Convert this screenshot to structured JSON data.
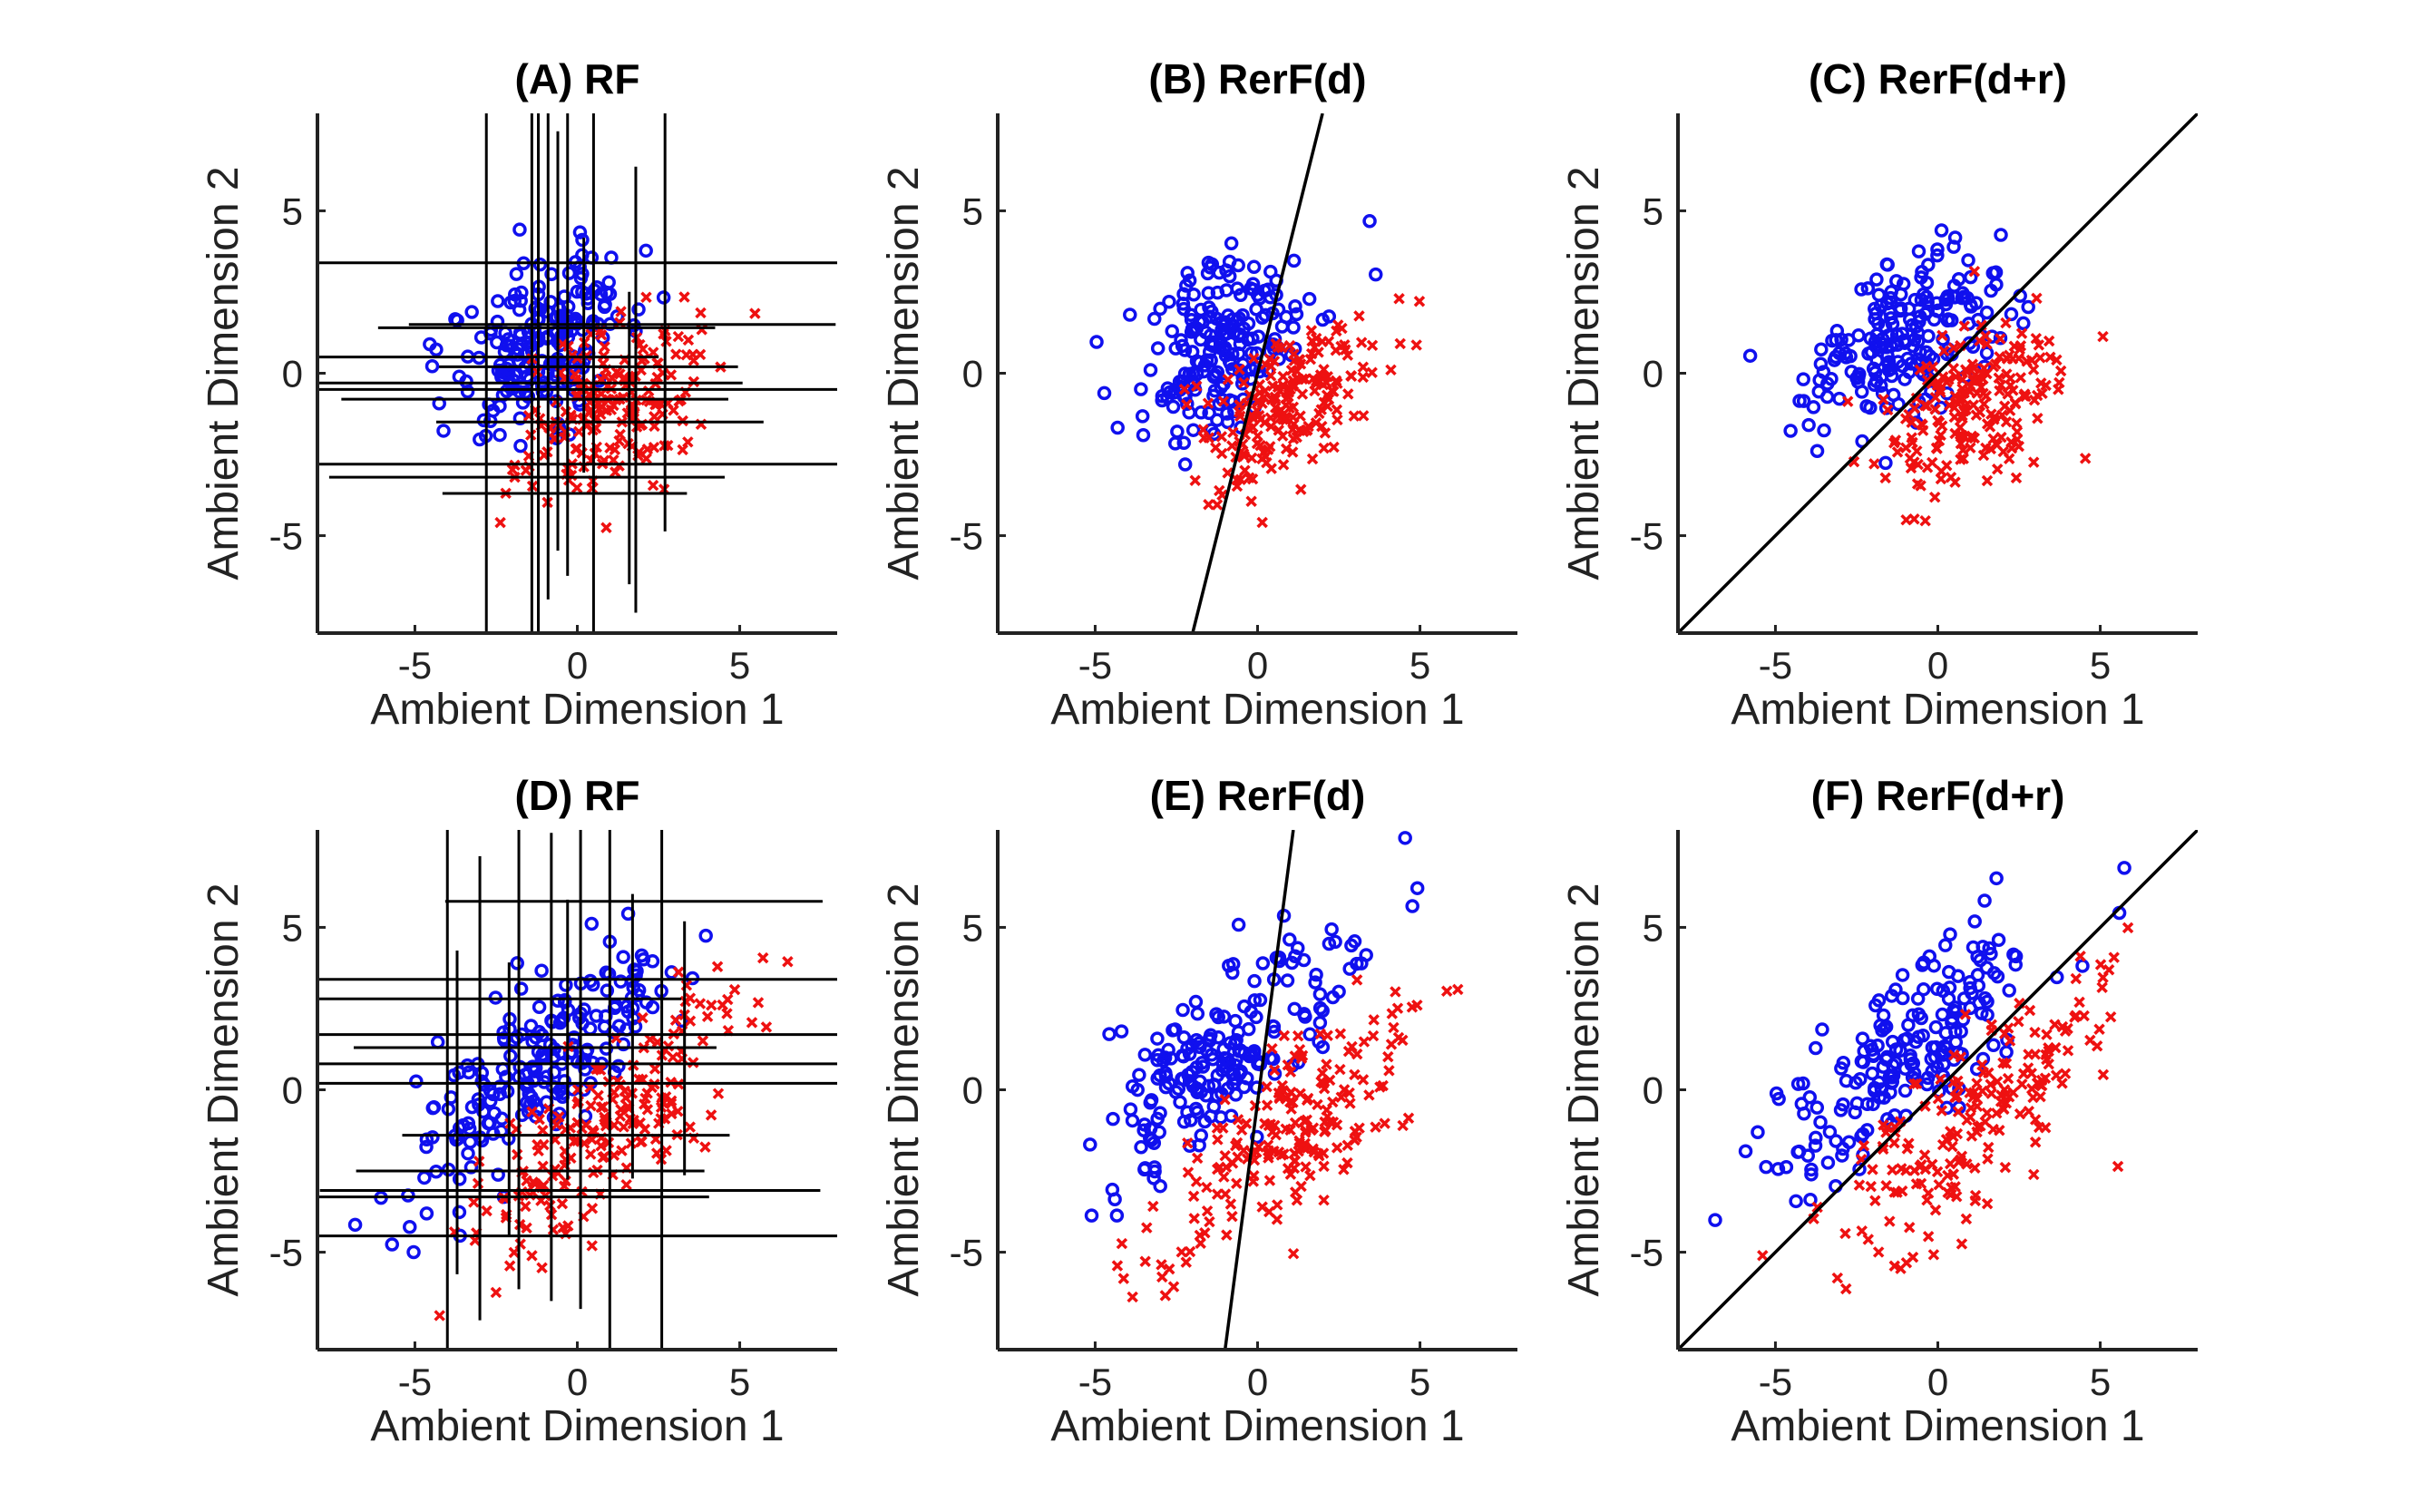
{
  "figure": {
    "colors": {
      "class_blue": "#1010ee",
      "class_red": "#ee1111",
      "axes": "#222222",
      "split_lines": "#000000"
    },
    "markers": {
      "blue": "circle",
      "red": "x-cross"
    }
  },
  "chart_data": [
    {
      "id": "A",
      "type": "scatter",
      "title": "(A) RF",
      "xlabel": "Ambient Dimension 1",
      "ylabel": "Ambient Dimension 2",
      "xlim": [
        -8,
        8
      ],
      "ylim": [
        -8,
        8
      ],
      "xticks": [
        -5,
        0,
        5
      ],
      "yticks": [
        -5,
        0,
        5
      ],
      "grid": false,
      "series": [
        {
          "color": "#1010ee",
          "marker": "circle",
          "cluster": {
            "mean": [
              -1,
              1
            ],
            "sd": [
              1.4,
              1.4
            ],
            "corr": 0.45,
            "n": 200
          }
        },
        {
          "color": "#ee1111",
          "marker": "x",
          "cluster": {
            "mean": [
              1,
              -1
            ],
            "sd": [
              1.4,
              1.4
            ],
            "corr": 0.45,
            "n": 200
          }
        }
      ],
      "split_type": "axis-aligned",
      "vlines": [
        -2.8,
        -1.4,
        -1.2,
        -0.9,
        -0.6,
        -0.3,
        0.2,
        0.5,
        1.6,
        1.8,
        2.7
      ],
      "hlines": [
        -3.7,
        -3.2,
        -2.8,
        -1.5,
        -0.8,
        -0.5,
        -0.3,
        0.2,
        0.5,
        1.4,
        1.5,
        3.4
      ]
    },
    {
      "id": "B",
      "type": "scatter",
      "title": "(B) RerF(d)",
      "xlabel": "Ambient Dimension 1",
      "ylabel": "Ambient Dimension 2",
      "xlim": [
        -8,
        8
      ],
      "ylim": [
        -8,
        8
      ],
      "xticks": [
        -5,
        0,
        5
      ],
      "yticks": [
        -5,
        0,
        5
      ],
      "grid": false,
      "series": [
        {
          "color": "#1010ee",
          "marker": "circle",
          "cluster": {
            "mean": [
              -1,
              1
            ],
            "sd": [
              1.4,
              1.4
            ],
            "corr": 0.45,
            "n": 200
          }
        },
        {
          "color": "#ee1111",
          "marker": "x",
          "cluster": {
            "mean": [
              1,
              -1
            ],
            "sd": [
              1.4,
              1.4
            ],
            "corr": 0.45,
            "n": 200
          }
        }
      ],
      "split_type": "oblique",
      "oblique_line": [
        [
          -2.0,
          -8
        ],
        [
          2.0,
          8
        ]
      ]
    },
    {
      "id": "C",
      "type": "scatter",
      "title": "(C) RerF(d+r)",
      "xlabel": "Ambient Dimension 1",
      "ylabel": "Ambient Dimension 2",
      "xlim": [
        -8,
        8
      ],
      "ylim": [
        -8,
        8
      ],
      "xticks": [
        -5,
        0,
        5
      ],
      "yticks": [
        -5,
        0,
        5
      ],
      "grid": false,
      "series": [
        {
          "color": "#1010ee",
          "marker": "circle",
          "cluster": {
            "mean": [
              -1,
              1
            ],
            "sd": [
              1.4,
              1.4
            ],
            "corr": 0.45,
            "n": 200
          }
        },
        {
          "color": "#ee1111",
          "marker": "x",
          "cluster": {
            "mean": [
              1,
              -1
            ],
            "sd": [
              1.4,
              1.4
            ],
            "corr": 0.45,
            "n": 200
          }
        }
      ],
      "split_type": "oblique",
      "oblique_line": [
        [
          -8,
          -8
        ],
        [
          8,
          8
        ]
      ]
    },
    {
      "id": "D",
      "type": "scatter",
      "title": "(D) RF",
      "xlabel": "Ambient Dimension 1",
      "ylabel": "Ambient Dimension 2",
      "xlim": [
        -8,
        8
      ],
      "ylim": [
        -8,
        8
      ],
      "xticks": [
        -5,
        0,
        5
      ],
      "yticks": [
        -5,
        0,
        5
      ],
      "grid": false,
      "series": [
        {
          "color": "#1010ee",
          "marker": "circle",
          "cluster": {
            "mean": [
              -1,
              1
            ],
            "sd": [
              2.0,
              2.0
            ],
            "corr": 0.75,
            "n": 200
          }
        },
        {
          "color": "#ee1111",
          "marker": "x",
          "cluster": {
            "mean": [
              1,
              -1
            ],
            "sd": [
              2.0,
              2.0
            ],
            "corr": 0.75,
            "n": 200
          }
        }
      ],
      "split_type": "axis-aligned",
      "vlines": [
        -4.0,
        -3.7,
        -3.0,
        -2.1,
        -1.8,
        -0.8,
        -0.3,
        0.1,
        1.0,
        1.7,
        2.6,
        3.3
      ],
      "hlines": [
        -4.5,
        -3.3,
        -3.1,
        -2.5,
        -1.4,
        0.2,
        0.8,
        1.3,
        1.7,
        2.8,
        3.4,
        5.8
      ]
    },
    {
      "id": "E",
      "type": "scatter",
      "title": "(E) RerF(d)",
      "xlabel": "Ambient Dimension 1",
      "ylabel": "Ambient Dimension 2",
      "xlim": [
        -8,
        8
      ],
      "ylim": [
        -8,
        8
      ],
      "xticks": [
        -5,
        0,
        5
      ],
      "yticks": [
        -5,
        0,
        5
      ],
      "grid": false,
      "series": [
        {
          "color": "#1010ee",
          "marker": "circle",
          "cluster": {
            "mean": [
              -1,
              1
            ],
            "sd": [
              2.0,
              2.0
            ],
            "corr": 0.75,
            "n": 200
          }
        },
        {
          "color": "#ee1111",
          "marker": "x",
          "cluster": {
            "mean": [
              1,
              -1
            ],
            "sd": [
              2.0,
              2.0
            ],
            "corr": 0.75,
            "n": 200
          }
        }
      ],
      "split_type": "oblique",
      "oblique_line": [
        [
          -1.0,
          -8
        ],
        [
          1.1,
          8
        ]
      ]
    },
    {
      "id": "F",
      "type": "scatter",
      "title": "(F) RerF(d+r)",
      "xlabel": "Ambient Dimension 1",
      "ylabel": "Ambient Dimension 2",
      "xlim": [
        -8,
        8
      ],
      "ylim": [
        -8,
        8
      ],
      "xticks": [
        -5,
        0,
        5
      ],
      "yticks": [
        -5,
        0,
        5
      ],
      "grid": false,
      "series": [
        {
          "color": "#1010ee",
          "marker": "circle",
          "cluster": {
            "mean": [
              -1,
              1
            ],
            "sd": [
              2.0,
              2.0
            ],
            "corr": 0.75,
            "n": 200
          }
        },
        {
          "color": "#ee1111",
          "marker": "x",
          "cluster": {
            "mean": [
              1,
              -1
            ],
            "sd": [
              2.0,
              2.0
            ],
            "corr": 0.75,
            "n": 200
          }
        }
      ],
      "split_type": "oblique",
      "oblique_line": [
        [
          -8,
          -8
        ],
        [
          8,
          8
        ]
      ]
    }
  ]
}
